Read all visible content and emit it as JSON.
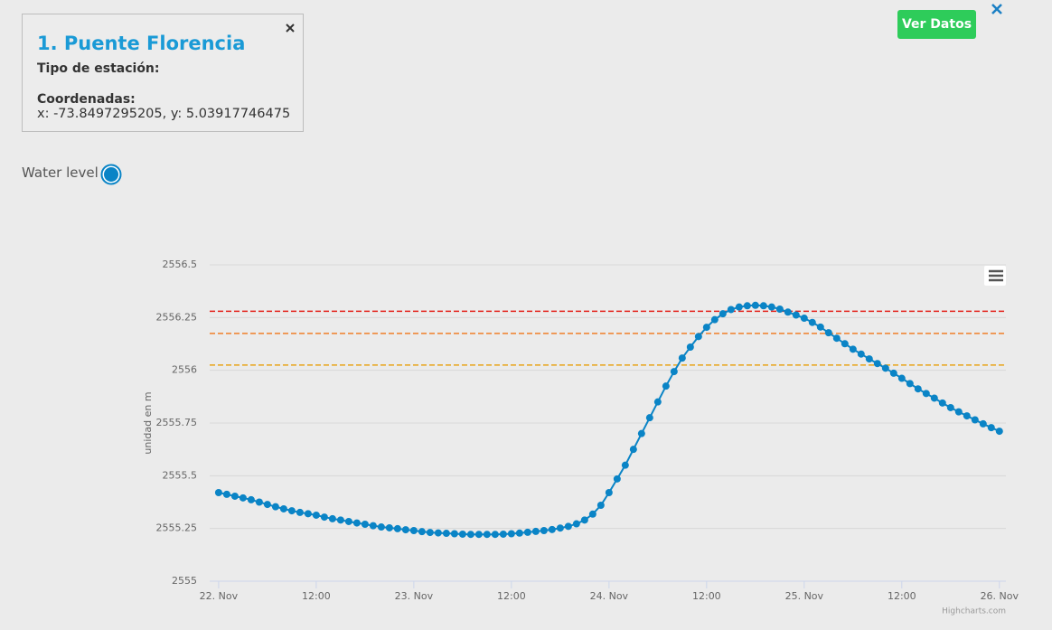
{
  "info_box": {
    "title": "1. Puente Florencia",
    "type_label": "Tipo de estación:",
    "coords_label": "Coordenadas:",
    "coords_value": "x: -73.8497295205, y: 5.03917746475"
  },
  "button": "Ver Datos",
  "chart_data": {
    "type": "line",
    "y_label": "unidad en m",
    "credits": "Highcharts.com",
    "grid": true,
    "x": [
      0,
      1,
      2,
      3,
      4,
      5,
      6,
      7,
      8,
      9,
      10,
      11,
      12,
      13,
      14,
      15,
      16,
      17,
      18,
      19,
      20,
      21,
      22,
      23,
      24,
      25,
      26,
      27,
      28,
      29,
      30,
      31,
      32,
      33,
      34,
      35,
      36,
      37,
      38,
      39,
      40,
      41,
      42,
      43,
      44,
      45,
      46,
      47,
      48,
      49,
      50,
      51,
      52,
      53,
      54,
      55,
      56,
      57,
      58,
      59,
      60,
      61,
      62,
      63,
      64,
      65,
      66,
      67,
      68,
      69,
      70,
      71,
      72,
      73,
      74,
      75,
      76,
      77,
      78,
      79,
      80,
      81,
      82,
      83,
      84,
      85,
      86,
      87,
      88,
      89,
      90,
      91,
      92,
      93,
      94,
      95,
      96
    ],
    "xlim": [
      -1.1,
      96.8
    ],
    "xticks": [
      {
        "value": 0,
        "label": "22. Nov"
      },
      {
        "value": 12,
        "label": "12:00"
      },
      {
        "value": 24,
        "label": "23. Nov"
      },
      {
        "value": 36,
        "label": "12:00"
      },
      {
        "value": 48,
        "label": "24. Nov"
      },
      {
        "value": 60,
        "label": "12:00"
      },
      {
        "value": 72,
        "label": "25. Nov"
      },
      {
        "value": 84,
        "label": "12:00"
      },
      {
        "value": 96,
        "label": "26. Nov"
      }
    ],
    "ylim": [
      2555,
      2556.5
    ],
    "yticks": [
      2555,
      2555.25,
      2555.5,
      2555.75,
      2556,
      2556.25,
      2556.5
    ],
    "plot_lines": [
      {
        "value": 2556.28,
        "color": "#e3211b"
      },
      {
        "value": 2556.175,
        "color": "#f07f2b"
      },
      {
        "value": 2556.025,
        "color": "#e8a418"
      }
    ],
    "series": [
      {
        "name": "Water level",
        "color": "#0a84c6",
        "values": [
          2555.42,
          2555.412,
          2555.403,
          2555.395,
          2555.386,
          2555.375,
          2555.364,
          2555.353,
          2555.343,
          2555.334,
          2555.326,
          2555.32,
          2555.313,
          2555.304,
          2555.296,
          2555.29,
          2555.283,
          2555.276,
          2555.27,
          2555.263,
          2555.257,
          2555.253,
          2555.249,
          2555.244,
          2555.24,
          2555.235,
          2555.231,
          2555.229,
          2555.227,
          2555.225,
          2555.223,
          2555.222,
          2555.222,
          2555.222,
          2555.222,
          2555.223,
          2555.225,
          2555.228,
          2555.232,
          2555.236,
          2555.24,
          2555.245,
          2555.252,
          2555.26,
          2555.272,
          2555.29,
          2555.318,
          2555.36,
          2555.42,
          2555.485,
          2555.55,
          2555.625,
          2555.7,
          2555.775,
          2555.85,
          2555.925,
          2555.994,
          2556.058,
          2556.11,
          2556.16,
          2556.204,
          2556.24,
          2556.268,
          2556.288,
          2556.3,
          2556.306,
          2556.308,
          2556.306,
          2556.3,
          2556.29,
          2556.276,
          2556.262,
          2556.247,
          2556.227,
          2556.205,
          2556.178,
          2556.152,
          2556.126,
          2556.1,
          2556.077,
          2556.054,
          2556.032,
          2556.01,
          2555.986,
          2555.962,
          2555.937,
          2555.912,
          2555.89,
          2555.868,
          2555.845,
          2555.823,
          2555.803,
          2555.784,
          2555.765,
          2555.746,
          2555.728,
          2555.711
        ]
      }
    ]
  }
}
